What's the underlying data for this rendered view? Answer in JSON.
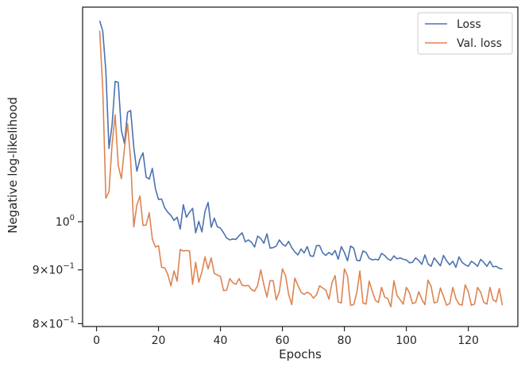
{
  "chart_data": {
    "type": "line",
    "title": "",
    "xlabel": "Epochs",
    "ylabel": "Negative log-likelihood",
    "yscale": "log",
    "xlim": [
      -4.5,
      136
    ],
    "ylim": [
      0.795,
      1.6
    ],
    "grid": false,
    "legend": "top-right",
    "x_ticks": [
      {
        "value": 0,
        "label": "0"
      },
      {
        "value": 20,
        "label": "20"
      },
      {
        "value": 40,
        "label": "40"
      },
      {
        "value": 60,
        "label": "60"
      },
      {
        "value": 80,
        "label": "80"
      },
      {
        "value": 100,
        "label": "100"
      },
      {
        "value": 120,
        "label": "120"
      }
    ],
    "y_ticks": [
      {
        "value": 0.8,
        "base": "8×10",
        "exp": "−1"
      },
      {
        "value": 0.9,
        "base": "9×10",
        "exp": "−1"
      },
      {
        "value": 1.0,
        "base": "10",
        "exp": "0"
      }
    ],
    "x": [
      1,
      2,
      3,
      4,
      5,
      6,
      7,
      8,
      9,
      10,
      11,
      12,
      13,
      14,
      15,
      16,
      17,
      18,
      19,
      20,
      21,
      22,
      23,
      24,
      25,
      26,
      27,
      28,
      29,
      30,
      31,
      32,
      33,
      34,
      35,
      36,
      37,
      38,
      39,
      40,
      41,
      42,
      43,
      44,
      45,
      46,
      47,
      48,
      49,
      50,
      51,
      52,
      53,
      54,
      55,
      56,
      57,
      58,
      59,
      60,
      61,
      62,
      63,
      64,
      65,
      66,
      67,
      68,
      69,
      70,
      71,
      72,
      73,
      74,
      75,
      76,
      77,
      78,
      79,
      80,
      81,
      82,
      83,
      84,
      85,
      86,
      87,
      88,
      89,
      90,
      91,
      92,
      93,
      94,
      95,
      96,
      97,
      98,
      99,
      100,
      101,
      102,
      103,
      104,
      105,
      106,
      107,
      108,
      109,
      110,
      111,
      112,
      113,
      114,
      115,
      116,
      117,
      118,
      119,
      120,
      121,
      122,
      123,
      124,
      125,
      126,
      127,
      128,
      129,
      130,
      131
    ],
    "series": [
      {
        "name": "Loss",
        "color": "#4c72b0",
        "values": [
          1.553,
          1.518,
          1.39,
          1.174,
          1.236,
          1.36,
          1.357,
          1.222,
          1.187,
          1.271,
          1.276,
          1.178,
          1.117,
          1.147,
          1.163,
          1.103,
          1.098,
          1.124,
          1.075,
          1.05,
          1.051,
          1.031,
          1.021,
          1.014,
          1.003,
          1.01,
          0.984,
          1.038,
          1.01,
          1.021,
          1.03,
          0.976,
          1.001,
          0.978,
          1.023,
          1.043,
          0.988,
          1.008,
          0.989,
          0.986,
          0.976,
          0.965,
          0.961,
          0.963,
          0.962,
          0.97,
          0.976,
          0.957,
          0.961,
          0.956,
          0.946,
          0.969,
          0.964,
          0.954,
          0.974,
          0.944,
          0.945,
          0.948,
          0.961,
          0.952,
          0.948,
          0.958,
          0.945,
          0.936,
          0.93,
          0.942,
          0.934,
          0.947,
          0.928,
          0.927,
          0.949,
          0.949,
          0.934,
          0.929,
          0.935,
          0.93,
          0.939,
          0.921,
          0.947,
          0.935,
          0.918,
          0.948,
          0.944,
          0.919,
          0.918,
          0.938,
          0.935,
          0.923,
          0.92,
          0.921,
          0.92,
          0.933,
          0.929,
          0.922,
          0.919,
          0.928,
          0.922,
          0.924,
          0.921,
          0.92,
          0.914,
          0.915,
          0.924,
          0.919,
          0.911,
          0.93,
          0.912,
          0.907,
          0.924,
          0.916,
          0.908,
          0.929,
          0.918,
          0.91,
          0.917,
          0.905,
          0.926,
          0.915,
          0.91,
          0.907,
          0.917,
          0.913,
          0.907,
          0.921,
          0.915,
          0.907,
          0.917,
          0.906,
          0.907,
          0.903,
          0.902
        ]
      },
      {
        "name": "Val. loss",
        "color": "#dd8452",
        "values": [
          1.52,
          1.337,
          1.053,
          1.068,
          1.185,
          1.264,
          1.131,
          1.099,
          1.174,
          1.24,
          1.144,
          0.989,
          1.037,
          1.058,
          0.992,
          0.993,
          1.02,
          0.963,
          0.946,
          0.949,
          0.905,
          0.904,
          0.891,
          0.869,
          0.898,
          0.878,
          0.941,
          0.938,
          0.939,
          0.938,
          0.872,
          0.915,
          0.876,
          0.896,
          0.926,
          0.902,
          0.924,
          0.893,
          0.89,
          0.887,
          0.86,
          0.861,
          0.883,
          0.875,
          0.872,
          0.883,
          0.87,
          0.869,
          0.87,
          0.862,
          0.859,
          0.87,
          0.9,
          0.871,
          0.848,
          0.879,
          0.879,
          0.843,
          0.858,
          0.902,
          0.889,
          0.853,
          0.834,
          0.884,
          0.87,
          0.857,
          0.853,
          0.857,
          0.854,
          0.846,
          0.852,
          0.869,
          0.865,
          0.861,
          0.844,
          0.875,
          0.889,
          0.839,
          0.837,
          0.902,
          0.888,
          0.833,
          0.834,
          0.856,
          0.898,
          0.837,
          0.835,
          0.878,
          0.859,
          0.842,
          0.838,
          0.866,
          0.848,
          0.845,
          0.83,
          0.879,
          0.851,
          0.843,
          0.835,
          0.866,
          0.856,
          0.836,
          0.838,
          0.858,
          0.844,
          0.834,
          0.88,
          0.868,
          0.837,
          0.839,
          0.865,
          0.849,
          0.833,
          0.836,
          0.866,
          0.845,
          0.835,
          0.833,
          0.871,
          0.858,
          0.833,
          0.835,
          0.866,
          0.857,
          0.838,
          0.835,
          0.866,
          0.843,
          0.839,
          0.864,
          0.833
        ]
      }
    ]
  }
}
